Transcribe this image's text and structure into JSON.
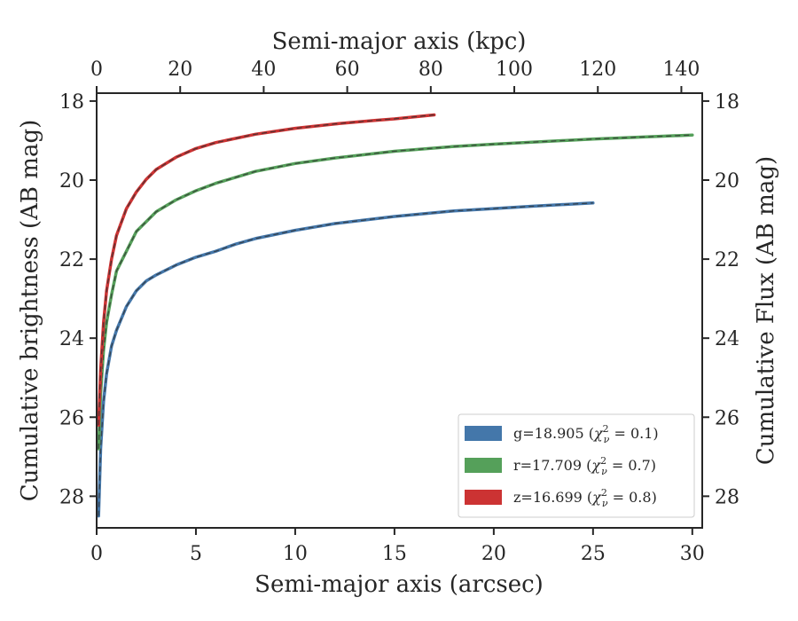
{
  "chart_data": {
    "type": "line",
    "title": "",
    "xlabel": "Semi-major axis (arcsec)",
    "ylabel": "Cumulative brightness (AB mag)",
    "ylabel_right": "Cumulative Flux (AB mag)",
    "xlabel_top": "Semi-major axis (kpc)",
    "xlim": [
      0,
      30.5
    ],
    "ylim": [
      28.8,
      17.8
    ],
    "ylim_inverted": true,
    "x_top_lim": [
      0,
      145
    ],
    "x_ticks": [
      0,
      5,
      10,
      15,
      20,
      25,
      30
    ],
    "x_top_ticks": [
      0,
      20,
      40,
      60,
      80,
      100,
      120,
      140
    ],
    "y_ticks": [
      18,
      20,
      22,
      24,
      26,
      28
    ],
    "grid": false,
    "legend_position": "lower-right",
    "series": [
      {
        "name": "g",
        "label_main": "g=18.905",
        "label_chi_value": "0.1",
        "color": "#4477aa",
        "x": [
          0.1,
          0.2,
          0.35,
          0.5,
          0.75,
          1.0,
          1.5,
          2.0,
          2.5,
          3.0,
          4.0,
          5.0,
          6.0,
          7.0,
          8.0,
          10.0,
          12.0,
          15.0,
          18.0,
          20.0,
          22.0,
          25.0
        ],
        "y": [
          28.5,
          26.8,
          25.6,
          24.9,
          24.2,
          23.8,
          23.2,
          22.8,
          22.55,
          22.4,
          22.15,
          21.95,
          21.8,
          21.62,
          21.48,
          21.27,
          21.1,
          20.92,
          20.78,
          20.72,
          20.66,
          20.58
        ]
      },
      {
        "name": "r",
        "label_main": "r=17.709",
        "label_chi_value": "0.7",
        "color": "#55a05a",
        "x": [
          0.1,
          0.2,
          0.35,
          0.5,
          0.75,
          1.0,
          1.5,
          2.0,
          3.0,
          4.0,
          5.0,
          6.0,
          8.0,
          10.0,
          12.0,
          15.0,
          18.0,
          20.0,
          25.0,
          30.0
        ],
        "y": [
          26.8,
          25.4,
          24.3,
          23.6,
          22.9,
          22.3,
          21.8,
          21.3,
          20.8,
          20.5,
          20.27,
          20.08,
          19.78,
          19.58,
          19.44,
          19.27,
          19.15,
          19.09,
          18.96,
          18.86
        ]
      },
      {
        "name": "z",
        "label_main": "z=16.699",
        "label_chi_value": "0.8",
        "color": "#cc3333",
        "x": [
          0.1,
          0.2,
          0.35,
          0.5,
          0.75,
          1.0,
          1.5,
          2.0,
          2.5,
          3.0,
          4.0,
          5.0,
          6.0,
          8.0,
          10.0,
          12.0,
          14.0,
          15.0,
          17.0
        ],
        "y": [
          26.2,
          24.8,
          23.6,
          22.8,
          22.0,
          21.4,
          20.72,
          20.3,
          19.98,
          19.73,
          19.42,
          19.2,
          19.05,
          18.84,
          18.69,
          18.58,
          18.49,
          18.45,
          18.35
        ]
      }
    ]
  }
}
